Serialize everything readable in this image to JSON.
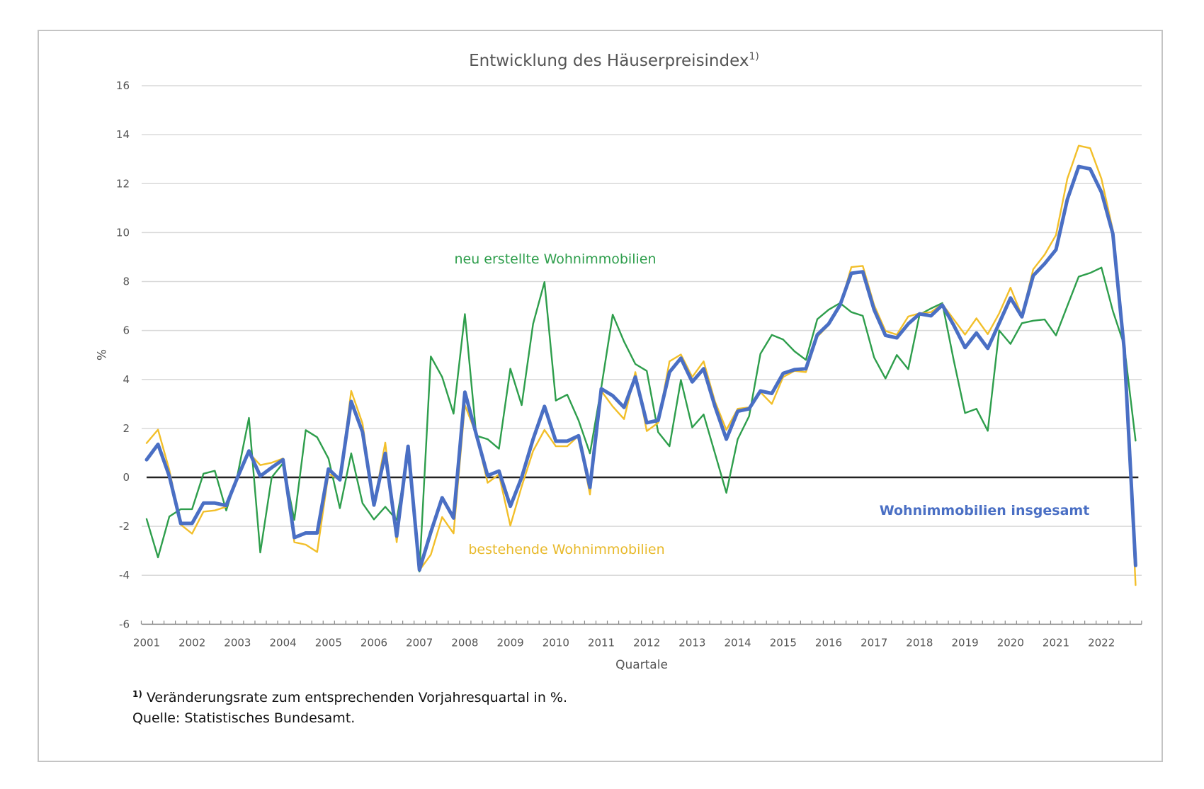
{
  "chart_data": {
    "type": "line",
    "title": "Entwicklung des Häuserpreisindex",
    "title_superscript": "1)",
    "xlabel": "Quartale",
    "ylabel": "%",
    "ylim": [
      -6,
      16
    ],
    "yticks": [
      16,
      14,
      12,
      10,
      8,
      6,
      4,
      2,
      0,
      -2,
      -4,
      -6
    ],
    "grid": true,
    "zero_line": true,
    "x_start": "2001 Q1",
    "x_end": "2022 Q4",
    "x_unit": "quarter",
    "xtick_labels": [
      "2001",
      "2002",
      "2003",
      "2004",
      "2005",
      "2006",
      "2007",
      "2008",
      "2009",
      "2010",
      "2011",
      "2012",
      "2013",
      "2014",
      "2015",
      "2016",
      "2017",
      "2018",
      "2019",
      "2020",
      "2021",
      "2022"
    ],
    "series": [
      {
        "name": "neu erstellte Wohnimmobilien",
        "color": "#2e9e4c",
        "values": [
          -1.7,
          -3.27,
          -1.6,
          -1.3,
          -1.3,
          0.15,
          0.27,
          -1.35,
          0.1,
          2.43,
          -3.07,
          0,
          0.58,
          -1.74,
          1.93,
          1.64,
          0.77,
          -1.26,
          0.98,
          -1.06,
          -1.72,
          -1.2,
          -1.74,
          1.0,
          -3.85,
          4.94,
          4.1,
          2.6,
          6.67,
          1.7,
          1.56,
          1.17,
          4.44,
          2.95,
          6.27,
          7.98,
          3.14,
          3.38,
          2.33,
          0.98,
          3.67,
          6.65,
          5.55,
          4.63,
          4.35,
          1.85,
          1.27,
          3.98,
          2.04,
          2.57,
          0.98,
          -0.63,
          1.56,
          2.5,
          5.05,
          5.82,
          5.63,
          5.15,
          4.8,
          6.46,
          6.85,
          7.12,
          6.75,
          6.6,
          4.9,
          4.04,
          5.0,
          4.42,
          6.65,
          6.9,
          7.12,
          4.8,
          2.63,
          2.8,
          1.9,
          6.0,
          5.45,
          6.3,
          6.4,
          6.45,
          5.8,
          7.0,
          8.2,
          8.35,
          8.57,
          6.8,
          5.4,
          1.5
        ]
      },
      {
        "name": "bestehende Wohnimmobilien",
        "color": "#f2bf2a",
        "values": [
          1.4,
          1.95,
          0.3,
          -1.93,
          -2.3,
          -1.4,
          -1.35,
          -1.2,
          0,
          1.0,
          0.5,
          0.6,
          0.77,
          -2.65,
          -2.75,
          -3.05,
          0.15,
          -0.1,
          3.53,
          2.2,
          -1.13,
          1.42,
          -2.65,
          1.27,
          -3.8,
          -3.16,
          -1.62,
          -2.29,
          2.95,
          1.75,
          -0.22,
          0.12,
          -1.97,
          -0.37,
          1.08,
          1.94,
          1.27,
          1.27,
          1.7,
          -0.7,
          3.53,
          2.9,
          2.38,
          4.3,
          1.89,
          2.23,
          4.74,
          5.02,
          4.1,
          4.74,
          3.1,
          1.94,
          2.8,
          2.86,
          3.48,
          3.0,
          4.1,
          4.35,
          4.3,
          5.74,
          6.22,
          7.0,
          8.59,
          8.64,
          7.04,
          5.98,
          5.83,
          6.57,
          6.7,
          6.75,
          7.08,
          6.46,
          5.83,
          6.5,
          5.85,
          6.7,
          7.75,
          6.6,
          8.5,
          9.1,
          9.9,
          12.2,
          13.55,
          13.45,
          12.2,
          10.1,
          5.5,
          -4.4
        ]
      },
      {
        "name": "Wohnimmobilien insgesamt",
        "color": "#4a6fc4",
        "values": [
          0.72,
          1.35,
          0.05,
          -1.88,
          -1.88,
          -1.05,
          -1.05,
          -1.15,
          0,
          1.08,
          0.05,
          0.4,
          0.72,
          -2.46,
          -2.27,
          -2.27,
          0.34,
          -0.1,
          3.1,
          1.85,
          -1.13,
          0.98,
          -2.4,
          1.27,
          -3.78,
          -2.24,
          -0.83,
          -1.66,
          3.48,
          1.75,
          0.07,
          0.26,
          -1.18,
          0,
          1.56,
          2.9,
          1.48,
          1.48,
          1.7,
          -0.41,
          3.62,
          3.34,
          2.86,
          4.1,
          2.23,
          2.33,
          4.3,
          4.87,
          3.9,
          4.44,
          2.9,
          1.56,
          2.7,
          2.8,
          3.53,
          3.43,
          4.25,
          4.4,
          4.44,
          5.83,
          6.27,
          7.04,
          8.34,
          8.4,
          6.85,
          5.8,
          5.7,
          6.27,
          6.68,
          6.6,
          7.04,
          6.22,
          5.3,
          5.9,
          5.27,
          6.3,
          7.33,
          6.56,
          8.24,
          8.73,
          9.3,
          11.35,
          12.7,
          12.6,
          11.65,
          9.95,
          5.25,
          -3.6
        ]
      }
    ],
    "annotations": [
      {
        "text": "neu erstellte Wohnimmobilien",
        "series": "neu erstellte Wohnimmobilien",
        "placement": "above series, 2008–2012"
      },
      {
        "text": "bestehende Wohnimmobilien",
        "series": "bestehende Wohnimmobilien",
        "placement": "below series, 2008–2012"
      },
      {
        "text": "Wohnimmobilien insgesamt",
        "series": "Wohnimmobilien insgesamt",
        "placement": "right, below zero line"
      }
    ]
  },
  "footnotes": {
    "marker": "1)",
    "note": "Veränderungsrate zum entsprechenden Vorjahresquartal in %.",
    "source": "Quelle: Statistisches Bundesamt."
  }
}
